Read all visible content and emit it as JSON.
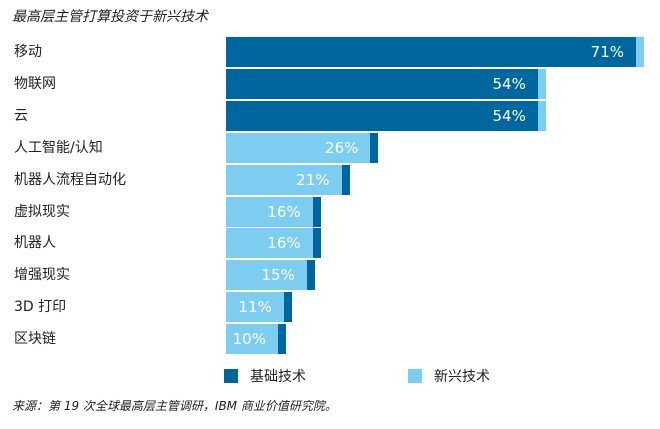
{
  "title": "最高层主管打算投资于新兴技术",
  "source": "来源：第 19 次全球最高层主管调研，IBM 商业价值研究院。",
  "colors": {
    "foundational": "#00679e",
    "emerging": "#7ccdf0",
    "label_dark_bg": "#ffffff",
    "label_light_bg": "#ffffff"
  },
  "chart_data": {
    "type": "bar",
    "orientation": "horizontal",
    "title": "最高层主管打算投资于新兴技术",
    "xlabel": "",
    "ylabel": "",
    "categories": [
      "移动",
      "物联网",
      "云",
      "人工智能/认知",
      "机器人流程自动化",
      "虚拟现实",
      "机器人",
      "增强现实",
      "3D 打印",
      "区块链"
    ],
    "labels": [
      "71%",
      "54%",
      "54%",
      "26%",
      "21%",
      "16%",
      "16%",
      "15%",
      "11%",
      "10%"
    ],
    "series": [
      {
        "name": "基础技术",
        "values": [
          71,
          54,
          54,
          1,
          1,
          1,
          1,
          1,
          1,
          1
        ]
      },
      {
        "name": "新兴技术",
        "values": [
          1,
          1,
          1,
          25,
          20,
          15,
          15,
          14,
          10,
          9
        ]
      }
    ],
    "legend": [
      "基础技术",
      "新兴技术"
    ],
    "legend_placement": "bottom",
    "grid": false
  }
}
